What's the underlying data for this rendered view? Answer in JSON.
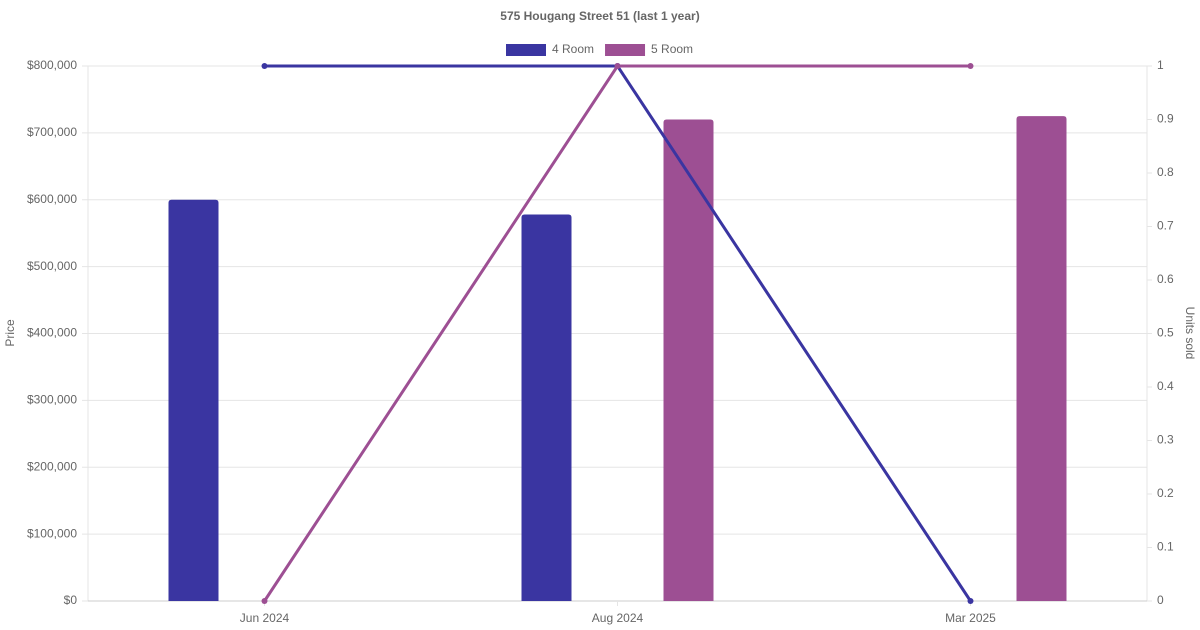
{
  "chart_data": {
    "type": "bar",
    "title": "575 Hougang Street 51 (last 1 year)",
    "categories": [
      "Jun 2024",
      "Aug 2024",
      "Mar 2025"
    ],
    "series": [
      {
        "name": "4 Room",
        "color": "#3a35a1",
        "values": [
          600000,
          578000,
          null
        ]
      },
      {
        "name": "5 Room",
        "color": "#9d4f93",
        "values": [
          null,
          720000,
          725000
        ]
      }
    ],
    "line_series": [
      {
        "color": "#3a35a1",
        "axis": "y2",
        "values": [
          1,
          1,
          0
        ]
      },
      {
        "color": "#9d4f93",
        "axis": "y2",
        "values": [
          0,
          1,
          1
        ]
      }
    ],
    "ylabel": "Price",
    "y2label": "Units sold",
    "ylim": [
      0,
      800000
    ],
    "yticks": [
      {
        "value": 0,
        "label": "$0"
      },
      {
        "value": 100000,
        "label": "$100,000"
      },
      {
        "value": 200000,
        "label": "$200,000"
      },
      {
        "value": 300000,
        "label": "$300,000"
      },
      {
        "value": 400000,
        "label": "$400,000"
      },
      {
        "value": 500000,
        "label": "$500,000"
      },
      {
        "value": 600000,
        "label": "$600,000"
      },
      {
        "value": 700000,
        "label": "$700,000"
      },
      {
        "value": 800000,
        "label": "$800,000"
      }
    ],
    "y2lim": [
      0,
      1
    ],
    "y2ticks": [
      0,
      0.1,
      0.2,
      0.3,
      0.4,
      0.5,
      0.6,
      0.7,
      0.8,
      0.9,
      1
    ],
    "grid": true,
    "legend": "top"
  }
}
